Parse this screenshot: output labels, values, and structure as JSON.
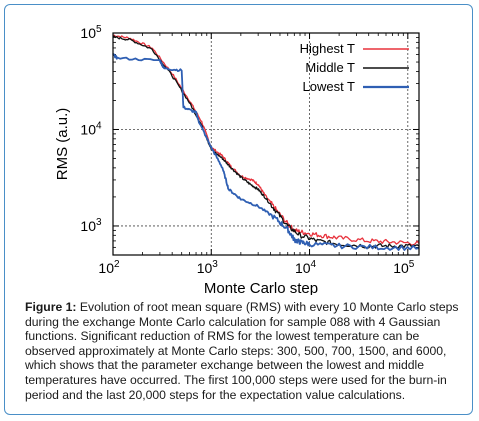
{
  "chart_data": {
    "type": "line",
    "xlabel": "Monte Carlo step",
    "ylabel": "RMS (a.u.)",
    "x_scale": "log",
    "y_scale": "log",
    "xlim": [
      100,
      130000
    ],
    "ylim": [
      500,
      100000
    ],
    "x_ticks": [
      100,
      1000,
      10000,
      100000
    ],
    "x_tick_labels": [
      {
        "base": "10",
        "exp": "2"
      },
      {
        "base": "10",
        "exp": "3"
      },
      {
        "base": "10",
        "exp": "4"
      },
      {
        "base": "10",
        "exp": "5"
      }
    ],
    "y_ticks": [
      1000,
      10000,
      100000
    ],
    "y_tick_labels": [
      {
        "base": "10",
        "exp": "3"
      },
      {
        "base": "10",
        "exp": "4"
      },
      {
        "base": "10",
        "exp": "5"
      }
    ],
    "grid": "dashed major",
    "legend_position": "top-right",
    "series": [
      {
        "name": "Highest T",
        "color": "#e8323c",
        "points": [
          [
            100,
            95000
          ],
          [
            150,
            88000
          ],
          [
            250,
            70000
          ],
          [
            400,
            38000
          ],
          [
            600,
            20000
          ],
          [
            800,
            12000
          ],
          [
            1000,
            6500
          ],
          [
            1300,
            5300
          ],
          [
            1600,
            4100
          ],
          [
            2000,
            3300
          ],
          [
            2600,
            3000
          ],
          [
            3000,
            2700
          ],
          [
            3500,
            2100
          ],
          [
            4500,
            1500
          ],
          [
            6000,
            1050
          ],
          [
            7000,
            900
          ],
          [
            9000,
            850
          ],
          [
            13000,
            800
          ],
          [
            20000,
            750
          ],
          [
            40000,
            700
          ],
          [
            70000,
            680
          ],
          [
            130000,
            660
          ]
        ]
      },
      {
        "name": "Middle T",
        "color": "#111111",
        "points": [
          [
            100,
            91000
          ],
          [
            150,
            85000
          ],
          [
            250,
            68000
          ],
          [
            400,
            36000
          ],
          [
            600,
            19000
          ],
          [
            800,
            11000
          ],
          [
            1000,
            6200
          ],
          [
            1300,
            5000
          ],
          [
            1600,
            4000
          ],
          [
            2000,
            3200
          ],
          [
            2500,
            2700
          ],
          [
            3000,
            2400
          ],
          [
            3500,
            2000
          ],
          [
            4500,
            1450
          ],
          [
            6000,
            1000
          ],
          [
            8000,
            800
          ],
          [
            12000,
            700
          ],
          [
            20000,
            650
          ],
          [
            40000,
            620
          ],
          [
            70000,
            620
          ],
          [
            130000,
            620
          ]
        ]
      },
      {
        "name": "Lowest T",
        "color": "#2f5fb3",
        "points": [
          [
            100,
            60000
          ],
          [
            110,
            55000
          ],
          [
            300,
            52000
          ],
          [
            330,
            43000
          ],
          [
            500,
            41000
          ],
          [
            520,
            17000
          ],
          [
            700,
            15000
          ],
          [
            750,
            12000
          ],
          [
            1000,
            6500
          ],
          [
            1300,
            4000
          ],
          [
            1500,
            2400
          ],
          [
            2000,
            1900
          ],
          [
            3000,
            1600
          ],
          [
            4500,
            1200
          ],
          [
            6000,
            920
          ],
          [
            7000,
            720
          ],
          [
            8000,
            680
          ],
          [
            10000,
            650
          ],
          [
            20000,
            620
          ],
          [
            50000,
            600
          ],
          [
            130000,
            590
          ]
        ]
      }
    ]
  },
  "caption": {
    "label": "Figure 1:",
    "text": " Evolution of root mean square (RMS) with every 10 Monte Carlo steps during the exchange Monte Carlo calculation for sample 088 with 4 Gaussian functions. Significant reduction of RMS for the lowest temperature can be observed approximately at Monte Carlo steps: 300, 500, 700, 1500, and 6000, which shows that the parameter exchange between the lowest and middle temperatures have occurred. The first 100,000 steps were used for the burn-in period and the last 20,000 steps for the expectation value calculations."
  }
}
